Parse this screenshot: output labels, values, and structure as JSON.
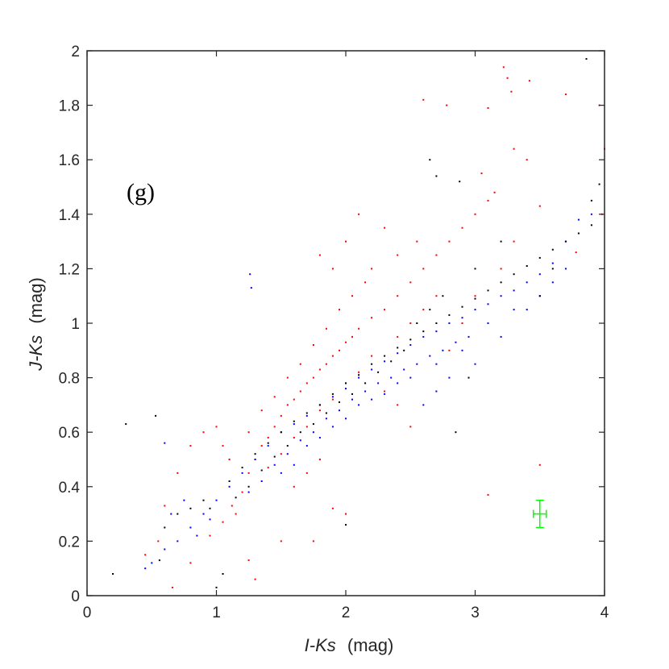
{
  "chart_data": {
    "type": "scatter",
    "xlabel": {
      "var": "I-Ks",
      "unit": "(mag)"
    },
    "ylabel": {
      "var": "J-Ks",
      "unit": "(mag)"
    },
    "xlim": [
      0,
      4
    ],
    "ylim": [
      0,
      2
    ],
    "xticks": [
      "0",
      "1",
      "2",
      "3",
      "4"
    ],
    "yticks": [
      "0",
      "0.2",
      "0.4",
      "0.6",
      "0.8",
      "1",
      "1.2",
      "1.4",
      "1.6",
      "1.8",
      "2"
    ],
    "panel_label": "(g)",
    "grid": false,
    "legend": "none",
    "series": [
      {
        "color": "#ff0000",
        "points": [
          [
            0.66,
            0.03
          ],
          [
            0.8,
            0.12
          ],
          [
            0.95,
            0.22
          ],
          [
            1.05,
            0.27
          ],
          [
            1.12,
            0.33
          ],
          [
            1.2,
            0.38
          ],
          [
            1.25,
            0.45
          ],
          [
            1.3,
            0.5
          ],
          [
            1.35,
            0.55
          ],
          [
            1.4,
            0.58
          ],
          [
            1.45,
            0.62
          ],
          [
            1.5,
            0.66
          ],
          [
            1.55,
            0.7
          ],
          [
            1.6,
            0.72
          ],
          [
            1.65,
            0.75
          ],
          [
            1.7,
            0.78
          ],
          [
            1.75,
            0.8
          ],
          [
            1.8,
            0.83
          ],
          [
            1.85,
            0.85
          ],
          [
            1.9,
            0.88
          ],
          [
            1.95,
            0.9
          ],
          [
            2.0,
            0.93
          ],
          [
            2.05,
            0.95
          ],
          [
            2.1,
            0.98
          ],
          [
            2.2,
            1.02
          ],
          [
            2.3,
            1.05
          ],
          [
            2.4,
            1.1
          ],
          [
            2.5,
            1.15
          ],
          [
            2.6,
            1.2
          ],
          [
            2.7,
            1.25
          ],
          [
            2.8,
            1.3
          ],
          [
            2.9,
            1.35
          ],
          [
            3.0,
            1.4
          ],
          [
            3.1,
            1.45
          ],
          [
            1.4,
            0.47
          ],
          [
            1.5,
            0.52
          ],
          [
            1.6,
            0.58
          ],
          [
            1.7,
            0.62
          ],
          [
            1.8,
            0.68
          ],
          [
            1.9,
            0.72
          ],
          [
            2.0,
            0.78
          ],
          [
            2.1,
            0.82
          ],
          [
            2.2,
            0.88
          ],
          [
            1.25,
            0.6
          ],
          [
            1.35,
            0.68
          ],
          [
            1.45,
            0.73
          ],
          [
            1.55,
            0.8
          ],
          [
            1.65,
            0.85
          ],
          [
            1.75,
            0.92
          ],
          [
            1.85,
            0.98
          ],
          [
            1.95,
            1.05
          ],
          [
            2.05,
            1.1
          ],
          [
            2.15,
            1.15
          ],
          [
            1.9,
            1.2
          ],
          [
            1.8,
            1.25
          ],
          [
            2.0,
            1.3
          ],
          [
            2.1,
            1.4
          ],
          [
            2.3,
            1.35
          ],
          [
            2.6,
            1.82
          ],
          [
            2.78,
            1.8
          ],
          [
            3.1,
            1.79
          ],
          [
            3.22,
            1.94
          ],
          [
            3.25,
            1.9
          ],
          [
            3.28,
            1.85
          ],
          [
            3.3,
            1.64
          ],
          [
            3.42,
            1.89
          ],
          [
            3.05,
            1.55
          ],
          [
            3.15,
            1.48
          ],
          [
            3.4,
            1.6
          ],
          [
            3.5,
            1.43
          ],
          [
            3.7,
            1.84
          ],
          [
            3.78,
            1.26
          ],
          [
            3.96,
            1.8
          ],
          [
            4.0,
            1.64
          ],
          [
            3.98,
            1.4
          ],
          [
            3.5,
            0.48
          ],
          [
            3.1,
            0.37
          ],
          [
            2.0,
            0.3
          ],
          [
            1.9,
            0.32
          ],
          [
            1.75,
            0.2
          ],
          [
            1.5,
            0.2
          ],
          [
            1.3,
            0.06
          ],
          [
            1.25,
            0.13
          ],
          [
            0.45,
            0.15
          ],
          [
            0.55,
            0.2
          ],
          [
            0.6,
            0.33
          ],
          [
            0.7,
            0.45
          ],
          [
            0.8,
            0.55
          ],
          [
            0.9,
            0.6
          ],
          [
            1.0,
            0.62
          ],
          [
            1.05,
            0.55
          ],
          [
            1.1,
            0.5
          ],
          [
            1.15,
            0.3
          ],
          [
            2.4,
            0.95
          ],
          [
            2.5,
            1.0
          ],
          [
            2.6,
            1.05
          ],
          [
            2.7,
            1.1
          ],
          [
            2.5,
            0.62
          ],
          [
            2.4,
            0.7
          ],
          [
            2.3,
            0.75
          ],
          [
            1.6,
            0.4
          ],
          [
            1.7,
            0.45
          ],
          [
            1.8,
            0.5
          ],
          [
            2.8,
            0.9
          ],
          [
            2.9,
            1.0
          ],
          [
            3.0,
            1.1
          ],
          [
            3.2,
            1.2
          ],
          [
            3.3,
            1.3
          ],
          [
            2.2,
            1.2
          ],
          [
            2.4,
            1.25
          ],
          [
            2.55,
            1.3
          ]
        ]
      },
      {
        "color": "#0000ff",
        "points": [
          [
            0.45,
            0.1
          ],
          [
            0.5,
            0.12
          ],
          [
            0.6,
            0.17
          ],
          [
            0.7,
            0.2
          ],
          [
            0.8,
            0.25
          ],
          [
            0.9,
            0.3
          ],
          [
            1.0,
            0.35
          ],
          [
            1.1,
            0.4
          ],
          [
            1.2,
            0.45
          ],
          [
            1.3,
            0.5
          ],
          [
            1.4,
            0.55
          ],
          [
            1.5,
            0.6
          ],
          [
            1.6,
            0.63
          ],
          [
            1.7,
            0.66
          ],
          [
            1.8,
            0.7
          ],
          [
            1.9,
            0.73
          ],
          [
            2.0,
            0.76
          ],
          [
            2.1,
            0.8
          ],
          [
            2.2,
            0.83
          ],
          [
            2.3,
            0.86
          ],
          [
            2.4,
            0.89
          ],
          [
            2.5,
            0.92
          ],
          [
            2.6,
            0.95
          ],
          [
            2.7,
            0.97
          ],
          [
            2.8,
            1.0
          ],
          [
            2.9,
            1.02
          ],
          [
            3.0,
            1.05
          ],
          [
            3.1,
            1.07
          ],
          [
            3.2,
            1.1
          ],
          [
            3.3,
            1.12
          ],
          [
            3.4,
            1.15
          ],
          [
            3.5,
            1.18
          ],
          [
            3.6,
            1.22
          ],
          [
            3.7,
            1.3
          ],
          [
            3.8,
            1.38
          ],
          [
            3.9,
            1.4
          ],
          [
            1.25,
            0.38
          ],
          [
            1.35,
            0.42
          ],
          [
            1.45,
            0.48
          ],
          [
            1.55,
            0.52
          ],
          [
            1.65,
            0.57
          ],
          [
            1.75,
            0.6
          ],
          [
            1.85,
            0.65
          ],
          [
            1.95,
            0.68
          ],
          [
            2.05,
            0.72
          ],
          [
            2.15,
            0.75
          ],
          [
            2.25,
            0.78
          ],
          [
            2.35,
            0.8
          ],
          [
            2.45,
            0.83
          ],
          [
            2.55,
            0.85
          ],
          [
            2.65,
            0.88
          ],
          [
            2.75,
            0.9
          ],
          [
            2.85,
            0.93
          ],
          [
            2.95,
            0.95
          ],
          [
            1.26,
            1.18
          ],
          [
            1.27,
            1.13
          ],
          [
            0.6,
            0.56
          ],
          [
            0.65,
            0.3
          ],
          [
            0.75,
            0.35
          ],
          [
            0.85,
            0.22
          ],
          [
            0.95,
            0.28
          ],
          [
            2.6,
            0.7
          ],
          [
            2.7,
            0.75
          ],
          [
            2.8,
            0.8
          ],
          [
            3.0,
            0.85
          ],
          [
            3.2,
            0.95
          ],
          [
            3.4,
            1.05
          ],
          [
            1.5,
            0.45
          ],
          [
            1.6,
            0.48
          ],
          [
            1.7,
            0.55
          ],
          [
            1.8,
            0.58
          ],
          [
            1.9,
            0.62
          ],
          [
            2.0,
            0.65
          ],
          [
            2.1,
            0.7
          ],
          [
            2.2,
            0.72
          ],
          [
            2.3,
            0.74
          ],
          [
            2.4,
            0.78
          ],
          [
            2.5,
            0.8
          ],
          [
            2.7,
            0.85
          ],
          [
            2.9,
            0.9
          ],
          [
            3.1,
            1.0
          ],
          [
            3.3,
            1.05
          ],
          [
            3.5,
            1.1
          ],
          [
            3.6,
            1.15
          ],
          [
            3.7,
            1.2
          ]
        ]
      },
      {
        "color": "#000000",
        "points": [
          [
            0.2,
            0.08
          ],
          [
            0.3,
            0.63
          ],
          [
            0.53,
            0.66
          ],
          [
            0.56,
            0.13
          ],
          [
            0.6,
            0.25
          ],
          [
            0.7,
            0.3
          ],
          [
            0.8,
            0.32
          ],
          [
            0.9,
            0.35
          ],
          [
            1.0,
            0.03
          ],
          [
            1.05,
            0.08
          ],
          [
            1.1,
            0.42
          ],
          [
            1.2,
            0.47
          ],
          [
            1.3,
            0.52
          ],
          [
            1.4,
            0.56
          ],
          [
            1.5,
            0.6
          ],
          [
            1.6,
            0.64
          ],
          [
            1.7,
            0.67
          ],
          [
            1.8,
            0.7
          ],
          [
            1.9,
            0.74
          ],
          [
            2.0,
            0.78
          ],
          [
            2.1,
            0.81
          ],
          [
            2.2,
            0.85
          ],
          [
            2.3,
            0.88
          ],
          [
            2.4,
            0.91
          ],
          [
            2.5,
            0.94
          ],
          [
            2.6,
            0.97
          ],
          [
            2.7,
            1.0
          ],
          [
            2.8,
            1.03
          ],
          [
            2.9,
            1.06
          ],
          [
            3.0,
            1.09
          ],
          [
            3.1,
            1.12
          ],
          [
            3.2,
            1.15
          ],
          [
            3.3,
            1.18
          ],
          [
            3.4,
            1.21
          ],
          [
            3.5,
            1.24
          ],
          [
            3.6,
            1.27
          ],
          [
            3.7,
            1.3
          ],
          [
            3.8,
            1.33
          ],
          [
            3.9,
            1.36
          ],
          [
            3.86,
            1.97
          ],
          [
            2.65,
            1.6
          ],
          [
            2.7,
            1.54
          ],
          [
            2.88,
            1.52
          ],
          [
            3.96,
            1.51
          ],
          [
            3.9,
            1.45
          ],
          [
            1.35,
            0.46
          ],
          [
            1.45,
            0.51
          ],
          [
            1.55,
            0.55
          ],
          [
            1.65,
            0.6
          ],
          [
            1.75,
            0.63
          ],
          [
            1.85,
            0.67
          ],
          [
            1.95,
            0.71
          ],
          [
            2.05,
            0.74
          ],
          [
            2.15,
            0.78
          ],
          [
            2.25,
            0.82
          ],
          [
            2.35,
            0.86
          ],
          [
            2.45,
            0.9
          ],
          [
            2.55,
            1.0
          ],
          [
            2.65,
            1.05
          ],
          [
            2.75,
            1.1
          ],
          [
            2.85,
            0.6
          ],
          [
            2.95,
            0.8
          ],
          [
            3.0,
            1.2
          ],
          [
            3.2,
            1.3
          ],
          [
            3.5,
            1.1
          ],
          [
            3.6,
            1.2
          ],
          [
            0.95,
            0.32
          ],
          [
            1.15,
            0.36
          ],
          [
            1.25,
            0.4
          ],
          [
            2.0,
            0.26
          ]
        ]
      }
    ],
    "annotations": [
      {
        "type": "errorbar",
        "color": "#00ff00",
        "x": 3.5,
        "y": 0.3,
        "xerr": 0.05,
        "yerr": 0.05
      }
    ]
  }
}
